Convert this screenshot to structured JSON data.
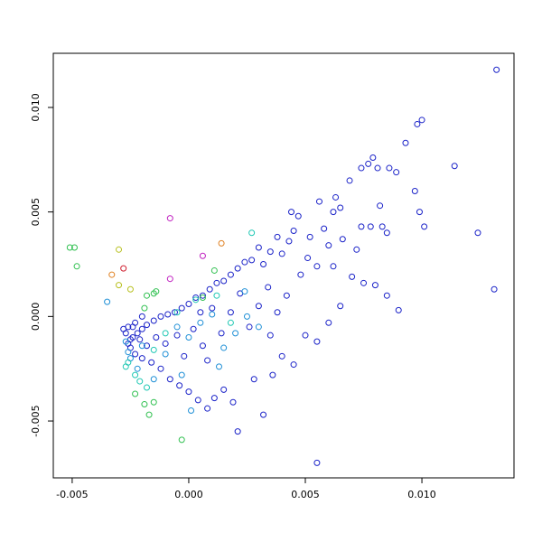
{
  "chart_data": {
    "type": "scatter",
    "xlim": [
      -0.00581,
      0.01395
    ],
    "ylim": [
      -0.00772,
      0.01259
    ],
    "xticks": [
      -0.005,
      {
        "value": 0,
        "label": "0.000"
      },
      0.005,
      {
        "value": 0.01,
        "label": "0.010"
      }
    ],
    "yticks": [
      -0.005,
      {
        "value": 0,
        "label": "0.000"
      },
      0.005,
      {
        "value": 0.01,
        "label": "0.010"
      }
    ],
    "groups": [
      {
        "color": "#1a22c8",
        "points": [
          [
            0.0132,
            0.0118
          ],
          [
            0.0131,
            0.0013
          ],
          [
            0.0124,
            0.004
          ],
          [
            0.0114,
            0.0072
          ],
          [
            0.01,
            0.0094
          ],
          [
            0.0098,
            0.0092
          ],
          [
            0.0101,
            0.0043
          ],
          [
            0.0099,
            0.005
          ],
          [
            0.0097,
            0.006
          ],
          [
            0.0093,
            0.0083
          ],
          [
            0.0089,
            0.0069
          ],
          [
            0.0086,
            0.0071
          ],
          [
            0.0085,
            0.004
          ],
          [
            0.0083,
            0.0043
          ],
          [
            0.0082,
            0.0053
          ],
          [
            0.0081,
            0.0071
          ],
          [
            0.0079,
            0.0076
          ],
          [
            0.0077,
            0.0073
          ],
          [
            0.0074,
            0.0071
          ],
          [
            0.0074,
            0.0043
          ],
          [
            0.0069,
            0.0065
          ],
          [
            0.0065,
            0.0052
          ],
          [
            0.0063,
            0.0057
          ],
          [
            0.0062,
            0.005
          ],
          [
            0.006,
            0.0034
          ],
          [
            0.0056,
            0.0055
          ],
          [
            0.0055,
            -0.007
          ],
          [
            0.0055,
            0.0024
          ],
          [
            0.0051,
            0.0028
          ],
          [
            0.0047,
            0.0048
          ],
          [
            0.0045,
            0.0041
          ],
          [
            0.0043,
            0.0036
          ],
          [
            0.004,
            0.003
          ],
          [
            0.0038,
            0.0038
          ],
          [
            0.0035,
            0.0031
          ],
          [
            0.0032,
            0.0025
          ],
          [
            0.003,
            0.0033
          ],
          [
            0.0027,
            0.0027
          ],
          [
            0.0024,
            0.0026
          ],
          [
            0.0021,
            0.0023
          ],
          [
            0.0018,
            0.002
          ],
          [
            0.0015,
            0.0017
          ],
          [
            0.0012,
            0.0016
          ],
          [
            0.0009,
            0.0013
          ],
          [
            0.0006,
            0.001
          ],
          [
            0.0003,
            0.0009
          ],
          [
            0.0,
            0.0006
          ],
          [
            -0.0003,
            0.0004
          ],
          [
            -0.0006,
            0.0002
          ],
          [
            -0.0009,
            0.0001
          ],
          [
            -0.0012,
            0.0
          ],
          [
            -0.0015,
            -0.0002
          ],
          [
            -0.0018,
            -0.0004
          ],
          [
            -0.002,
            -0.0006
          ],
          [
            -0.0022,
            -0.0008
          ],
          [
            -0.0024,
            -0.001
          ],
          [
            -0.0025,
            -0.0011
          ],
          [
            -0.0026,
            -0.0013
          ],
          [
            -0.0025,
            -0.0015
          ],
          [
            -0.0023,
            -0.0018
          ],
          [
            -0.002,
            -0.002
          ],
          [
            -0.0016,
            -0.0022
          ],
          [
            -0.0012,
            -0.0025
          ],
          [
            -0.0008,
            -0.003
          ],
          [
            -0.0004,
            -0.0033
          ],
          [
            0.0,
            -0.0036
          ],
          [
            0.0004,
            -0.004
          ],
          [
            0.0008,
            -0.0044
          ],
          [
            0.0011,
            -0.0039
          ],
          [
            0.0015,
            -0.0035
          ],
          [
            0.0019,
            -0.0041
          ],
          [
            0.0021,
            -0.0055
          ],
          [
            0.0028,
            -0.003
          ],
          [
            0.0032,
            -0.0047
          ],
          [
            0.0036,
            -0.0028
          ],
          [
            0.004,
            -0.0019
          ],
          [
            0.0045,
            -0.0023
          ],
          [
            0.005,
            -0.0009
          ],
          [
            0.0055,
            -0.0012
          ],
          [
            0.006,
            -0.0003
          ],
          [
            0.0065,
            0.0005
          ],
          [
            0.007,
            0.0019
          ],
          [
            0.0075,
            0.0016
          ],
          [
            0.008,
            0.0015
          ],
          [
            0.0085,
            0.001
          ],
          [
            0.0072,
            0.0032
          ],
          [
            0.0066,
            0.0037
          ],
          [
            0.0058,
            0.0042
          ],
          [
            0.0052,
            0.0038
          ],
          [
            0.0048,
            0.002
          ],
          [
            0.0042,
            0.001
          ],
          [
            0.0038,
            0.0002
          ],
          [
            0.0034,
            0.0014
          ],
          [
            0.003,
            0.0005
          ],
          [
            0.0026,
            -0.0005
          ],
          [
            0.0022,
            0.0011
          ],
          [
            0.0018,
            0.0002
          ],
          [
            0.0014,
            -0.0008
          ],
          [
            0.001,
            0.0004
          ],
          [
            0.0006,
            -0.0014
          ],
          [
            0.0002,
            -0.0006
          ],
          [
            -0.0002,
            -0.0019
          ],
          [
            -0.0005,
            -0.0009
          ],
          [
            -0.001,
            -0.0013
          ],
          [
            0.0035,
            -0.0009
          ],
          [
            0.0062,
            0.0024
          ],
          [
            0.0078,
            0.0043
          ],
          [
            0.009,
            0.0003
          ],
          [
            0.0044,
            0.005
          ],
          [
            -0.002,
            0.0
          ],
          [
            -0.0023,
            -0.0003
          ],
          [
            -0.0026,
            -0.0005
          ],
          [
            -0.0027,
            -0.0008
          ],
          [
            -0.0028,
            -0.0006
          ],
          [
            -0.0024,
            -0.0005
          ],
          [
            -0.0021,
            -0.0011
          ],
          [
            -0.0018,
            -0.0014
          ],
          [
            -0.0014,
            -0.001
          ],
          [
            0.0005,
            0.0002
          ],
          [
            0.0008,
            -0.0021
          ]
        ]
      },
      {
        "color": "#1e8fd6",
        "points": [
          [
            -0.0026,
            -0.0017
          ],
          [
            -0.0027,
            -0.0012
          ],
          [
            -0.0025,
            -0.002
          ],
          [
            -0.0022,
            -0.0025
          ],
          [
            -0.002,
            -0.0014
          ],
          [
            -0.0015,
            -0.003
          ],
          [
            -0.001,
            -0.0018
          ],
          [
            -0.0005,
            -0.0005
          ],
          [
            0.0,
            -0.001
          ],
          [
            0.0005,
            -0.0003
          ],
          [
            0.001,
            0.0001
          ],
          [
            0.0015,
            -0.0015
          ],
          [
            0.002,
            -0.0008
          ],
          [
            0.0025,
            0.0
          ],
          [
            0.003,
            -0.0005
          ],
          [
            -0.0035,
            0.0007
          ],
          [
            0.0001,
            -0.0045
          ],
          [
            -0.0003,
            -0.0028
          ],
          [
            0.0013,
            -0.0024
          ],
          [
            0.0024,
            0.0012
          ]
        ]
      },
      {
        "color": "#20c8b4",
        "points": [
          [
            -0.0026,
            -0.0022
          ],
          [
            -0.0023,
            -0.0028
          ],
          [
            -0.0021,
            -0.0031
          ],
          [
            -0.0018,
            -0.0034
          ],
          [
            -0.0015,
            -0.0016
          ],
          [
            -0.001,
            -0.0008
          ],
          [
            -0.0005,
            0.0002
          ],
          [
            0.0003,
            0.0008
          ],
          [
            0.0012,
            0.001
          ],
          [
            0.0027,
            0.004
          ],
          [
            0.0018,
            -0.0003
          ],
          [
            -0.0027,
            -0.0024
          ]
        ]
      },
      {
        "color": "#30c050",
        "points": [
          [
            -0.0051,
            0.0033
          ],
          [
            -0.0049,
            0.0033
          ],
          [
            -0.0048,
            0.0024
          ],
          [
            -0.0023,
            -0.0037
          ],
          [
            -0.0019,
            -0.0042
          ],
          [
            -0.0017,
            -0.0047
          ],
          [
            -0.0015,
            -0.0041
          ],
          [
            -0.0019,
            0.0004
          ],
          [
            -0.0018,
            0.001
          ],
          [
            -0.0015,
            0.0011
          ],
          [
            -0.0014,
            0.0012
          ],
          [
            -0.0003,
            -0.0059
          ],
          [
            0.0011,
            0.0022
          ],
          [
            0.0006,
            0.0009
          ]
        ]
      },
      {
        "color": "#b8c020",
        "points": [
          [
            -0.003,
            0.0032
          ],
          [
            -0.003,
            0.0015
          ],
          [
            -0.0025,
            0.0013
          ]
        ]
      },
      {
        "color": "#e08020",
        "points": [
          [
            -0.0033,
            0.002
          ],
          [
            0.0014,
            0.0035
          ]
        ]
      },
      {
        "color": "#d02030",
        "points": [
          [
            -0.0028,
            0.0023
          ]
        ]
      },
      {
        "color": "#c020c0",
        "points": [
          [
            -0.0008,
            0.0047
          ],
          [
            -0.0008,
            0.0018
          ],
          [
            0.0006,
            0.0029
          ]
        ]
      }
    ]
  }
}
